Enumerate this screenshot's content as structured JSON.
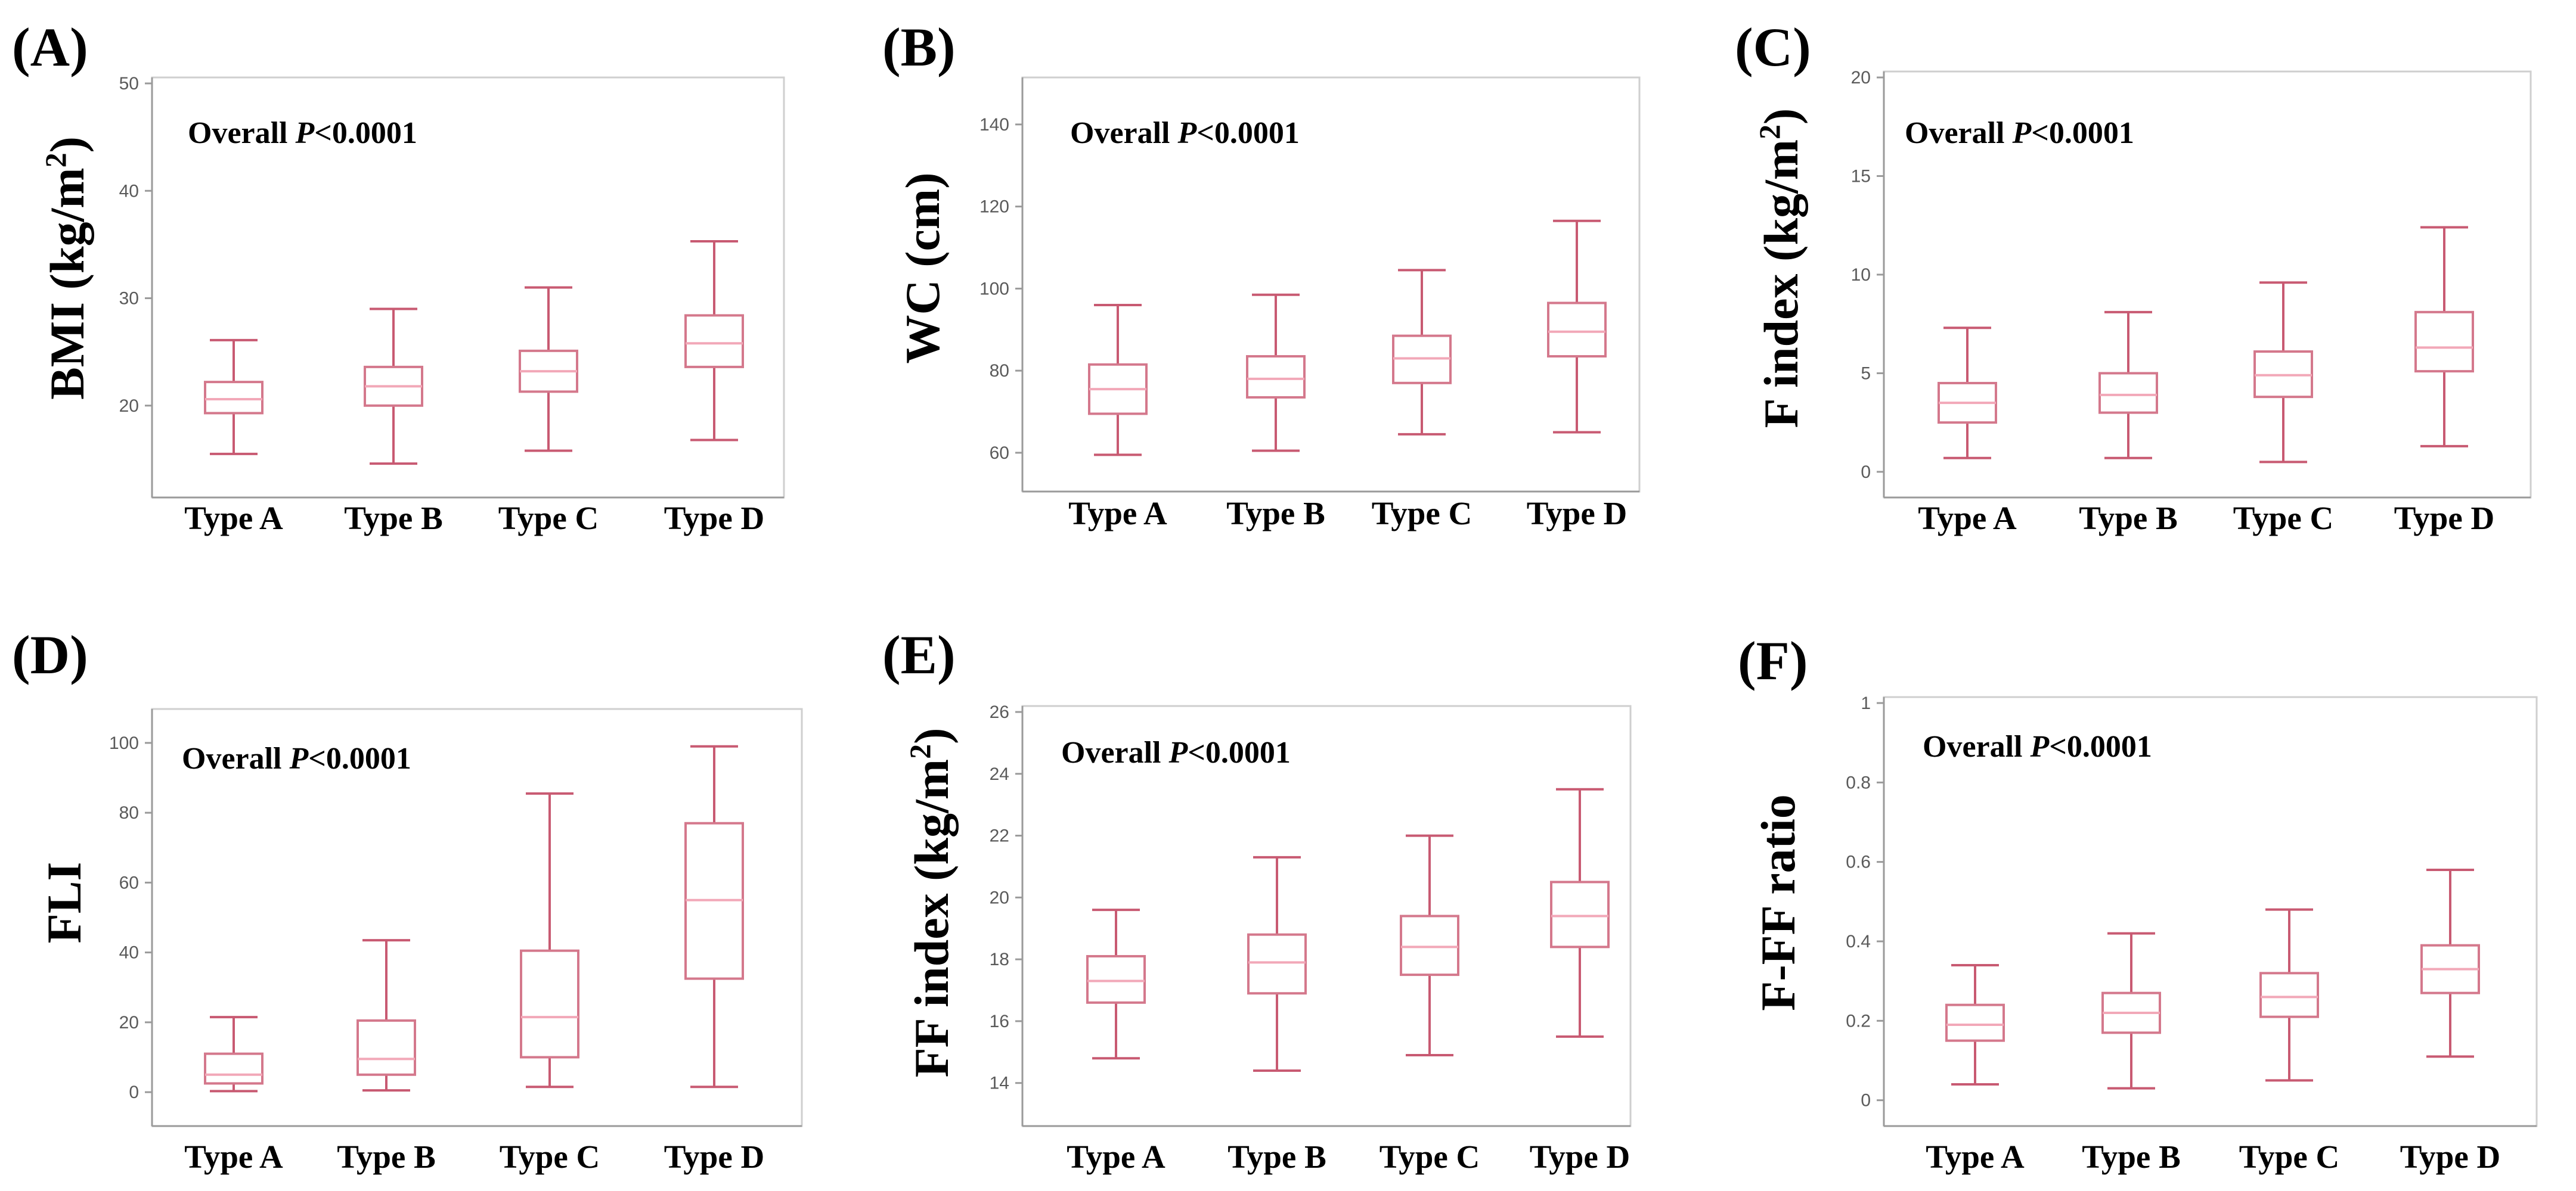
{
  "chart_data": [
    {
      "type": "boxplot",
      "letter": "(A)",
      "ylabel": "BMI (kg/m",
      "ylabel_sup": "2",
      "ylabel_close": ")",
      "annotation": "Overall",
      "annotation_p": "P",
      "annotation_value": "<0.0001",
      "ylim": [
        12,
        50
      ],
      "yticks": [
        20,
        30,
        40,
        50
      ],
      "categories": [
        "Type A",
        "Type B",
        "Type C",
        "Type D"
      ],
      "boxes": [
        {
          "min": 15.5,
          "q1": 19.3,
          "median": 20.6,
          "q3": 22.2,
          "max": 26.1
        },
        {
          "min": 14.6,
          "q1": 20.0,
          "median": 21.8,
          "q3": 23.6,
          "max": 29.0
        },
        {
          "min": 15.8,
          "q1": 21.3,
          "median": 23.2,
          "q3": 25.1,
          "max": 31.0
        },
        {
          "min": 16.8,
          "q1": 23.6,
          "median": 25.8,
          "q3": 28.4,
          "max": 35.3
        }
      ]
    },
    {
      "type": "boxplot",
      "letter": "(B)",
      "ylabel": "WC (cm)",
      "ylabel_sup": "",
      "ylabel_close": "",
      "annotation": "Overall",
      "annotation_p": "P",
      "annotation_value": "<0.0001",
      "ylim": [
        52,
        150
      ],
      "yticks": [
        60,
        80,
        100,
        120,
        140
      ],
      "categories": [
        "Type A",
        "Type B",
        "Type C",
        "Type D"
      ],
      "boxes": [
        {
          "min": 59.5,
          "q1": 69.5,
          "median": 75.5,
          "q3": 81.5,
          "max": 96.0
        },
        {
          "min": 60.5,
          "q1": 73.5,
          "median": 78.0,
          "q3": 83.5,
          "max": 98.5
        },
        {
          "min": 64.5,
          "q1": 77.0,
          "median": 83.0,
          "q3": 88.5,
          "max": 104.5
        },
        {
          "min": 65.0,
          "q1": 83.5,
          "median": 89.5,
          "q3": 96.5,
          "max": 116.5
        }
      ]
    },
    {
      "type": "boxplot",
      "letter": "(C)",
      "ylabel": "F index (kg/m",
      "ylabel_sup": "2",
      "ylabel_close": ")",
      "annotation": "Overall",
      "annotation_p": "P",
      "annotation_value": "<0.0001",
      "ylim": [
        -1,
        20
      ],
      "yticks": [
        0,
        5,
        10,
        15,
        20
      ],
      "categories": [
        "Type A",
        "Type B",
        "Type C",
        "Type D"
      ],
      "boxes": [
        {
          "min": 0.7,
          "q1": 2.5,
          "median": 3.5,
          "q3": 4.5,
          "max": 7.3
        },
        {
          "min": 0.7,
          "q1": 3.0,
          "median": 3.9,
          "q3": 5.0,
          "max": 8.1
        },
        {
          "min": 0.5,
          "q1": 3.8,
          "median": 4.9,
          "q3": 6.1,
          "max": 9.6
        },
        {
          "min": 1.3,
          "q1": 5.1,
          "median": 6.3,
          "q3": 8.1,
          "max": 12.4
        }
      ]
    },
    {
      "type": "boxplot",
      "letter": "(D)",
      "ylabel": "FLI",
      "ylabel_sup": "",
      "ylabel_close": "",
      "annotation": "Overall",
      "annotation_p": "P",
      "annotation_value": "<0.0001",
      "ylim": [
        -8,
        108
      ],
      "yticks": [
        0,
        20,
        40,
        60,
        80,
        100
      ],
      "categories": [
        "Type A",
        "Type B",
        "Type C",
        "Type D"
      ],
      "boxes": [
        {
          "min": 0.3,
          "q1": 2.5,
          "median": 5.0,
          "q3": 11.0,
          "max": 21.5
        },
        {
          "min": 0.5,
          "q1": 5.0,
          "median": 9.5,
          "q3": 20.5,
          "max": 43.5
        },
        {
          "min": 1.5,
          "q1": 10.0,
          "median": 21.5,
          "q3": 40.5,
          "max": 85.5
        },
        {
          "min": 1.5,
          "q1": 32.5,
          "median": 55.0,
          "q3": 77.0,
          "max": 99.0
        }
      ]
    },
    {
      "type": "boxplot",
      "letter": "(E)",
      "ylabel": "FF index (kg/m",
      "ylabel_sup": "2",
      "ylabel_close": ")",
      "annotation": "Overall",
      "annotation_p": "P",
      "annotation_value": "<0.0001",
      "ylim": [
        12.8,
        26
      ],
      "yticks": [
        14,
        16,
        18,
        20,
        22,
        24,
        26
      ],
      "categories": [
        "Type A",
        "Type B",
        "Type C",
        "Type D"
      ],
      "boxes": [
        {
          "min": 14.8,
          "q1": 16.6,
          "median": 17.3,
          "q3": 18.1,
          "max": 19.6
        },
        {
          "min": 14.4,
          "q1": 16.9,
          "median": 17.9,
          "q3": 18.8,
          "max": 21.3
        },
        {
          "min": 14.9,
          "q1": 17.5,
          "median": 18.4,
          "q3": 19.4,
          "max": 22.0
        },
        {
          "min": 15.5,
          "q1": 18.4,
          "median": 19.4,
          "q3": 20.5,
          "max": 23.5
        }
      ]
    },
    {
      "type": "boxplot",
      "letter": "(F)",
      "ylabel": "F-FF ratio",
      "ylabel_sup": "",
      "ylabel_close": "",
      "annotation": "Overall",
      "annotation_p": "P",
      "annotation_value": "<0.0001",
      "ylim": [
        -0.05,
        1
      ],
      "yticks": [
        0,
        0.2,
        0.4,
        0.6,
        0.8,
        1
      ],
      "yticklabels": [
        "0",
        "0.2",
        "0.4",
        "0.6",
        "0.8",
        "1"
      ],
      "categories": [
        "Type A",
        "Type B",
        "Type C",
        "Type D"
      ],
      "boxes": [
        {
          "min": 0.04,
          "q1": 0.15,
          "median": 0.19,
          "q3": 0.24,
          "max": 0.34
        },
        {
          "min": 0.03,
          "q1": 0.17,
          "median": 0.22,
          "q3": 0.27,
          "max": 0.42
        },
        {
          "min": 0.05,
          "q1": 0.21,
          "median": 0.26,
          "q3": 0.32,
          "max": 0.48
        },
        {
          "min": 0.11,
          "q1": 0.27,
          "median": 0.33,
          "q3": 0.39,
          "max": 0.58
        }
      ]
    }
  ]
}
